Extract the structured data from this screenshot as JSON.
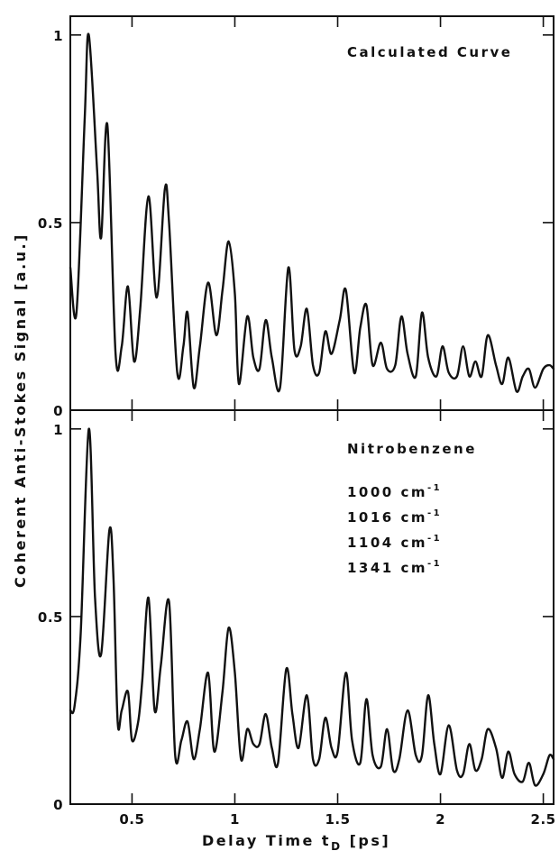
{
  "chart_data": [
    {
      "type": "line",
      "panel": "top",
      "annotations": [
        "Calculated Curve"
      ],
      "xlim": [
        0.2,
        2.55
      ],
      "ylim": [
        0,
        1.05
      ],
      "x": [
        0.2,
        0.23,
        0.27,
        0.29,
        0.33,
        0.35,
        0.38,
        0.42,
        0.45,
        0.48,
        0.51,
        0.54,
        0.58,
        0.62,
        0.66,
        0.68,
        0.72,
        0.75,
        0.77,
        0.8,
        0.83,
        0.87,
        0.91,
        0.94,
        0.97,
        1.0,
        1.02,
        1.06,
        1.09,
        1.12,
        1.15,
        1.18,
        1.22,
        1.26,
        1.29,
        1.32,
        1.35,
        1.38,
        1.41,
        1.44,
        1.47,
        1.51,
        1.54,
        1.58,
        1.61,
        1.64,
        1.67,
        1.71,
        1.74,
        1.78,
        1.81,
        1.84,
        1.88,
        1.91,
        1.94,
        1.98,
        2.01,
        2.04,
        2.08,
        2.11,
        2.14,
        2.17,
        2.2,
        2.23,
        2.27,
        2.3,
        2.33,
        2.37,
        2.4,
        2.43,
        2.46,
        2.5,
        2.53,
        2.55
      ],
      "y": [
        0.38,
        0.26,
        0.78,
        1.0,
        0.64,
        0.46,
        0.76,
        0.15,
        0.17,
        0.33,
        0.13,
        0.27,
        0.57,
        0.3,
        0.59,
        0.5,
        0.1,
        0.17,
        0.26,
        0.06,
        0.17,
        0.34,
        0.2,
        0.32,
        0.45,
        0.31,
        0.07,
        0.25,
        0.14,
        0.11,
        0.24,
        0.14,
        0.06,
        0.38,
        0.16,
        0.17,
        0.27,
        0.12,
        0.1,
        0.21,
        0.15,
        0.24,
        0.32,
        0.1,
        0.22,
        0.28,
        0.12,
        0.18,
        0.11,
        0.12,
        0.25,
        0.15,
        0.09,
        0.26,
        0.14,
        0.09,
        0.17,
        0.1,
        0.09,
        0.17,
        0.09,
        0.13,
        0.09,
        0.2,
        0.12,
        0.07,
        0.14,
        0.05,
        0.09,
        0.11,
        0.06,
        0.11,
        0.12,
        0.11
      ]
    },
    {
      "type": "line",
      "panel": "bottom",
      "annotations": [
        "Nitrobenzene",
        "1000  cm",
        "1016  cm",
        "1104  cm",
        "1341  cm"
      ],
      "annotation_superscript": "-1",
      "xlim": [
        0.2,
        2.55
      ],
      "ylim": [
        0,
        1.05
      ],
      "x": [
        0.2,
        0.22,
        0.25,
        0.29,
        0.32,
        0.35,
        0.39,
        0.41,
        0.43,
        0.45,
        0.48,
        0.5,
        0.53,
        0.55,
        0.58,
        0.61,
        0.64,
        0.68,
        0.71,
        0.74,
        0.77,
        0.8,
        0.83,
        0.87,
        0.9,
        0.94,
        0.97,
        1.0,
        1.03,
        1.06,
        1.09,
        1.12,
        1.15,
        1.18,
        1.21,
        1.25,
        1.28,
        1.31,
        1.35,
        1.38,
        1.41,
        1.44,
        1.47,
        1.5,
        1.54,
        1.57,
        1.61,
        1.64,
        1.67,
        1.71,
        1.74,
        1.77,
        1.8,
        1.84,
        1.88,
        1.91,
        1.94,
        1.97,
        2.0,
        2.04,
        2.08,
        2.11,
        2.14,
        2.17,
        2.2,
        2.23,
        2.27,
        2.3,
        2.33,
        2.36,
        2.4,
        2.43,
        2.46,
        2.5,
        2.53,
        2.55
      ],
      "y": [
        0.25,
        0.26,
        0.45,
        1.0,
        0.55,
        0.4,
        0.73,
        0.6,
        0.22,
        0.25,
        0.3,
        0.17,
        0.22,
        0.33,
        0.55,
        0.25,
        0.37,
        0.54,
        0.13,
        0.17,
        0.22,
        0.12,
        0.2,
        0.35,
        0.14,
        0.3,
        0.47,
        0.35,
        0.12,
        0.2,
        0.16,
        0.16,
        0.24,
        0.15,
        0.11,
        0.36,
        0.24,
        0.15,
        0.29,
        0.12,
        0.12,
        0.23,
        0.15,
        0.14,
        0.35,
        0.17,
        0.11,
        0.28,
        0.13,
        0.1,
        0.2,
        0.09,
        0.12,
        0.25,
        0.13,
        0.13,
        0.29,
        0.16,
        0.08,
        0.21,
        0.09,
        0.08,
        0.16,
        0.09,
        0.12,
        0.2,
        0.15,
        0.07,
        0.14,
        0.08,
        0.06,
        0.11,
        0.05,
        0.08,
        0.13,
        0.12
      ]
    }
  ],
  "axes": {
    "x_ticks": [
      "0.5",
      "1",
      "1.5",
      "2",
      "2.5"
    ],
    "y_ticks": [
      "0",
      "0.5",
      "1"
    ],
    "xlabel": "Delay Time  t",
    "xlabel_subscript": "D",
    "xlabel_unit": " [ps]",
    "ylabel": "Coherent Anti-Stokes  Signal [a.u.]"
  }
}
